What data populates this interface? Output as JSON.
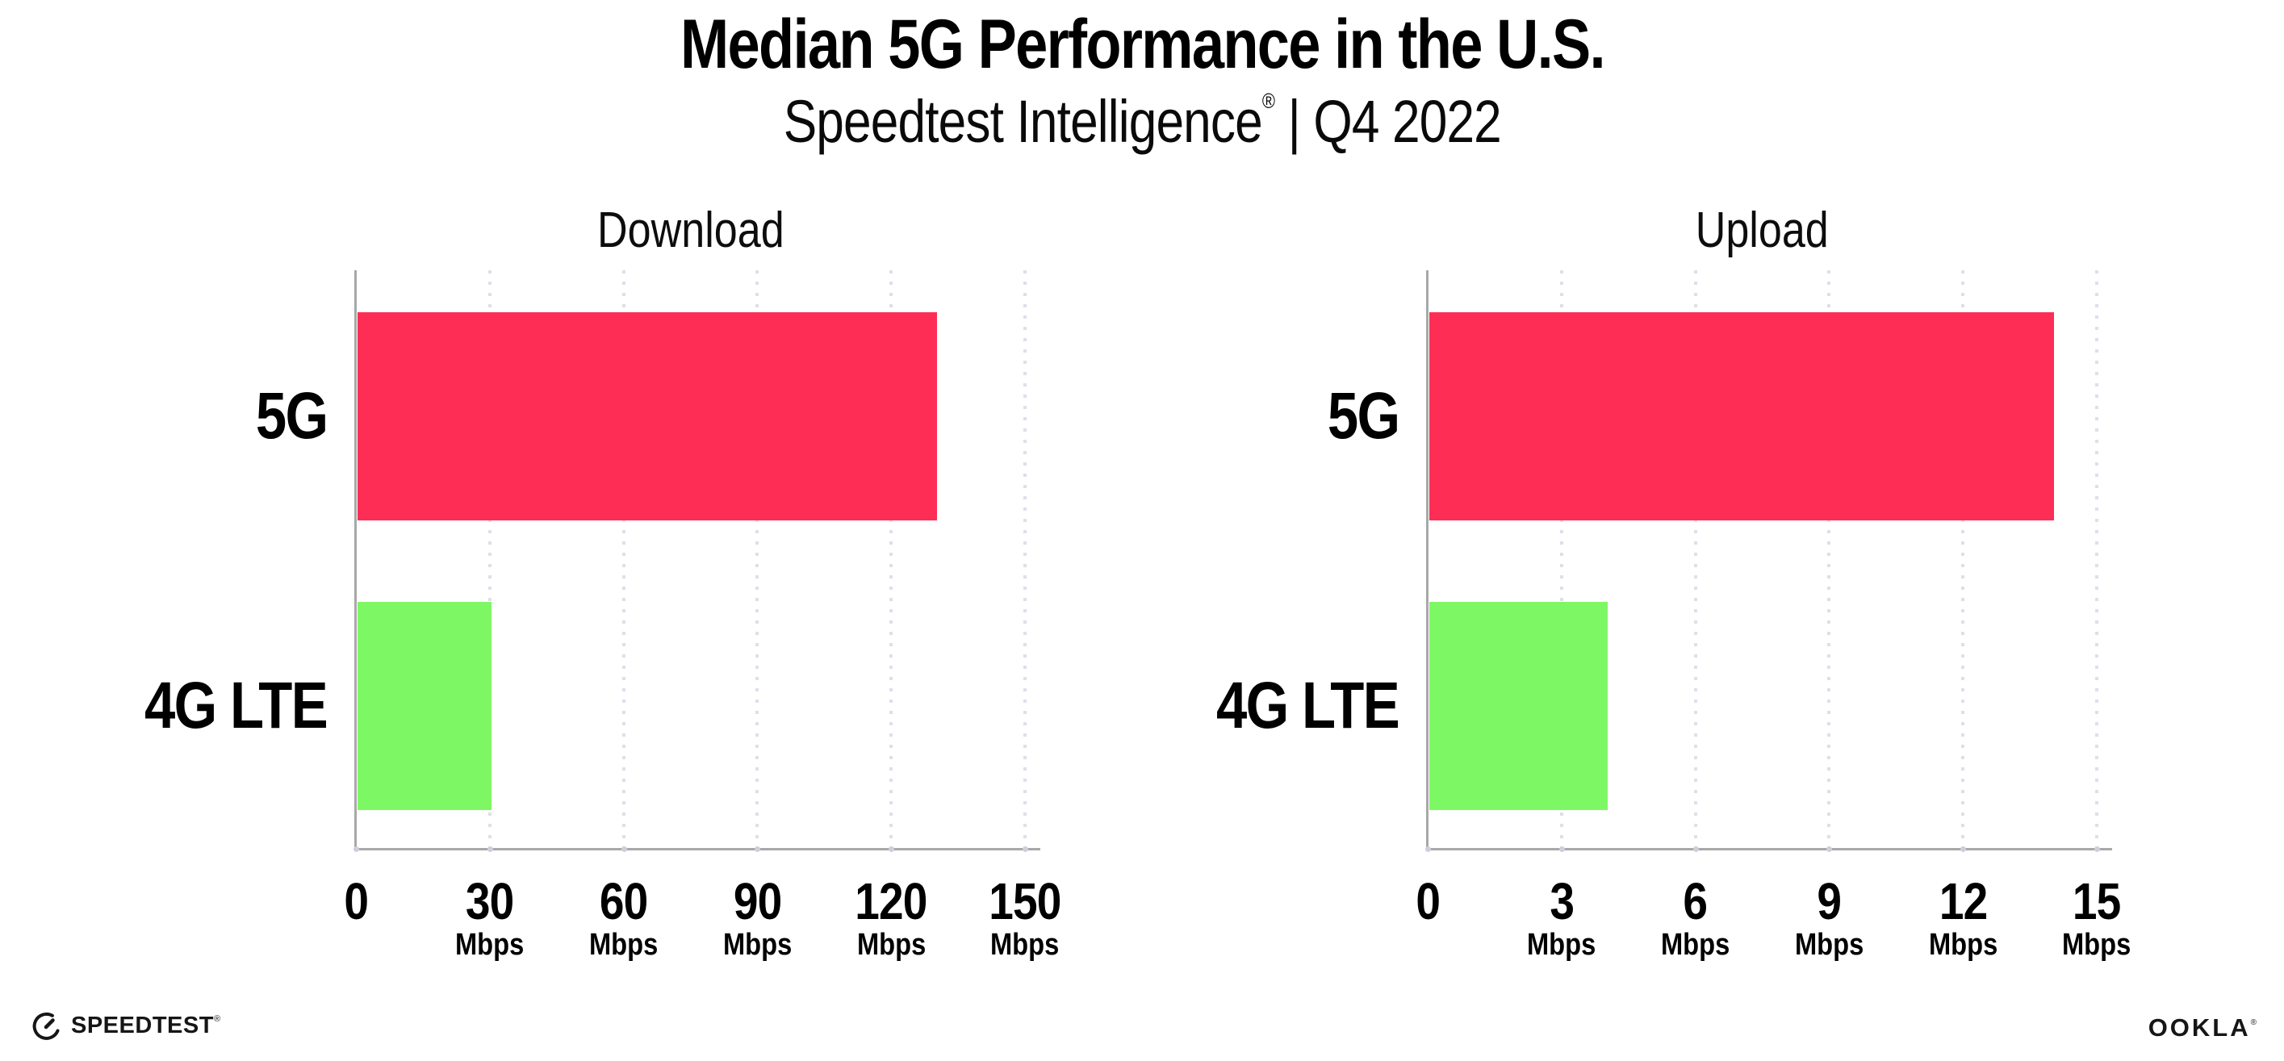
{
  "header": {
    "title": "Median 5G Performance in the U.S.",
    "subtitle_brand": "Speedtest Intelligence",
    "subtitle_reg": "®",
    "subtitle_sep": " | ",
    "subtitle_period": "Q4 2022"
  },
  "footer": {
    "speedtest_label": "SPEEDTEST",
    "speedtest_mark": "®",
    "ookla_label": "OOKLA",
    "ookla_mark": "®"
  },
  "colors": {
    "bar_5g": "#fd2d55",
    "bar_4g_lte": "#7ef765",
    "gridline": "#dde0ea",
    "axis": "#a8a8a8",
    "text": "#000000"
  },
  "chart_data": [
    {
      "type": "bar",
      "orientation": "horizontal",
      "title": "Download",
      "categories": [
        "5G",
        "4G LTE"
      ],
      "values": [
        130,
        30
      ],
      "unit": "Mbps",
      "xlim": [
        0,
        150
      ],
      "xticks": [
        0,
        30,
        60,
        90,
        120,
        150
      ],
      "tick_unit_label": "Mbps",
      "tick_unit_on_zero": false,
      "bar_colors": [
        "#fd2d55",
        "#7ef765"
      ],
      "grid": "dotted-vertical",
      "legend": "none"
    },
    {
      "type": "bar",
      "orientation": "horizontal",
      "title": "Upload",
      "categories": [
        "5G",
        "4G LTE"
      ],
      "values": [
        14,
        4
      ],
      "unit": "Mbps",
      "xlim": [
        0,
        15
      ],
      "xticks": [
        0,
        3,
        6,
        9,
        12,
        15
      ],
      "tick_unit_label": "Mbps",
      "tick_unit_on_zero": false,
      "bar_colors": [
        "#fd2d55",
        "#7ef765"
      ],
      "grid": "dotted-vertical",
      "legend": "none"
    }
  ]
}
